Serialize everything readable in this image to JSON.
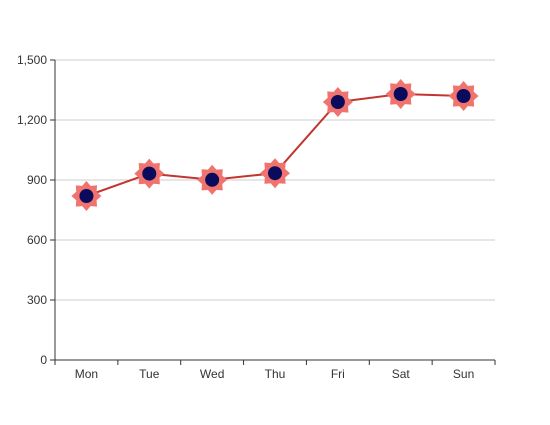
{
  "chart_data": {
    "type": "line",
    "title": "",
    "xlabel": "",
    "ylabel": "",
    "categories": [
      "Mon",
      "Tue",
      "Wed",
      "Thu",
      "Fri",
      "Sat",
      "Sun"
    ],
    "series": [
      {
        "values": [
          820,
          932,
          901,
          934,
          1290,
          1330,
          1320
        ]
      }
    ],
    "ylim": [
      0,
      1500
    ],
    "yticks": [
      "0",
      "300",
      "600",
      "900",
      "1,200",
      "1,500"
    ],
    "grid": true,
    "legend": "none",
    "colors": {
      "line": "#c23531",
      "marker_outer": "#f0736e",
      "marker_inner": "#0b0b5e",
      "grid": "#cccccc",
      "axis": "#333333"
    },
    "marker_icon": "sun-star"
  }
}
